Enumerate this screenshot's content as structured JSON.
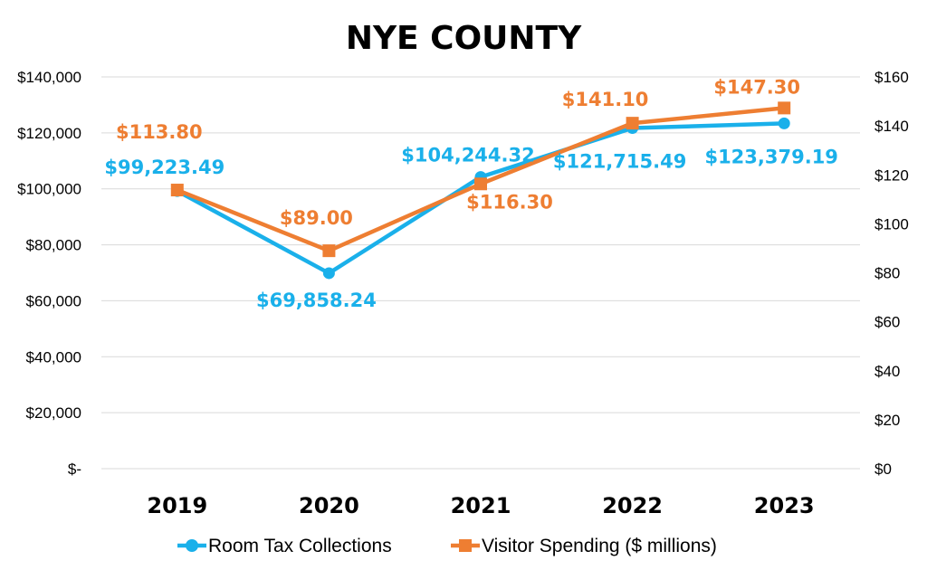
{
  "chart_data": {
    "type": "line",
    "title": "NYE COUNTY",
    "categories": [
      "2019",
      "2020",
      "2021",
      "2022",
      "2023"
    ],
    "left_axis": {
      "ylim": [
        0,
        140000
      ],
      "tick_values": [
        0,
        20000,
        40000,
        60000,
        80000,
        100000,
        120000,
        140000
      ],
      "tick_labels": [
        "$-",
        "$20,000",
        "$40,000",
        "$60,000",
        "$80,000",
        "$100,000",
        "$120,000",
        "$140,000"
      ]
    },
    "right_axis": {
      "ylim": [
        0,
        160
      ],
      "tick_values": [
        0,
        20,
        40,
        60,
        80,
        100,
        120,
        140,
        160
      ],
      "tick_labels": [
        "$0",
        "$20",
        "$40",
        "$60",
        "$80",
        "$100",
        "$120",
        "$140",
        "$160"
      ]
    },
    "grid": true,
    "legend_position": "bottom",
    "series": [
      {
        "name": "Room Tax Collections",
        "axis": "left",
        "marker": "circle",
        "color": "#1ab0ea",
        "values": [
          99223.49,
          69858.24,
          104244.32,
          121715.49,
          123379.19
        ],
        "data_labels": [
          "$99,223.49",
          "$69,858.24",
          "$104,244.32",
          "$121,715.49",
          "$123,379.19"
        ]
      },
      {
        "name": "Visitor Spending ($ millions)",
        "axis": "right",
        "marker": "square",
        "color": "#ee7e32",
        "values": [
          113.8,
          89.0,
          116.3,
          141.1,
          147.3
        ],
        "data_labels": [
          "$113.80",
          "$89.00",
          "$116.30",
          "$141.10",
          "$147.30"
        ]
      }
    ]
  }
}
